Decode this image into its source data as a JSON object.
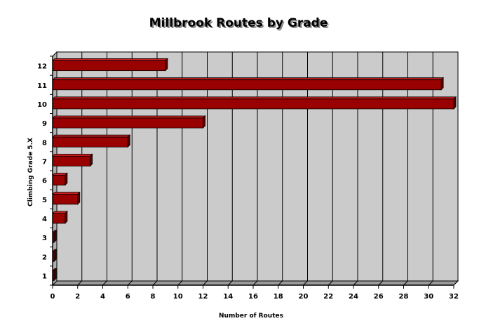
{
  "chart_data": {
    "type": "bar",
    "orientation": "horizontal",
    "title": "Millbrook Routes by Grade",
    "xlabel": "Number of Routes",
    "ylabel": "Climbing Grade 5.X",
    "categories": [
      "1",
      "2",
      "3",
      "4",
      "5",
      "6",
      "7",
      "8",
      "9",
      "10",
      "11",
      "12"
    ],
    "values": [
      0,
      0,
      0,
      1,
      2,
      1,
      3,
      6,
      12,
      32,
      31,
      9
    ],
    "xlim": [
      0,
      32
    ],
    "xticks": [
      "0",
      "2",
      "4",
      "6",
      "8",
      "10",
      "12",
      "14",
      "16",
      "18",
      "20",
      "22",
      "24",
      "26",
      "28",
      "30",
      "32"
    ],
    "grid": true,
    "style": "3d",
    "colors": {
      "bar_front": "#990000",
      "bar_top": "#c81e1e",
      "bar_side": "#5c0000",
      "plot_background": "#cbcbcb",
      "floor": "#9a9a9a"
    }
  }
}
